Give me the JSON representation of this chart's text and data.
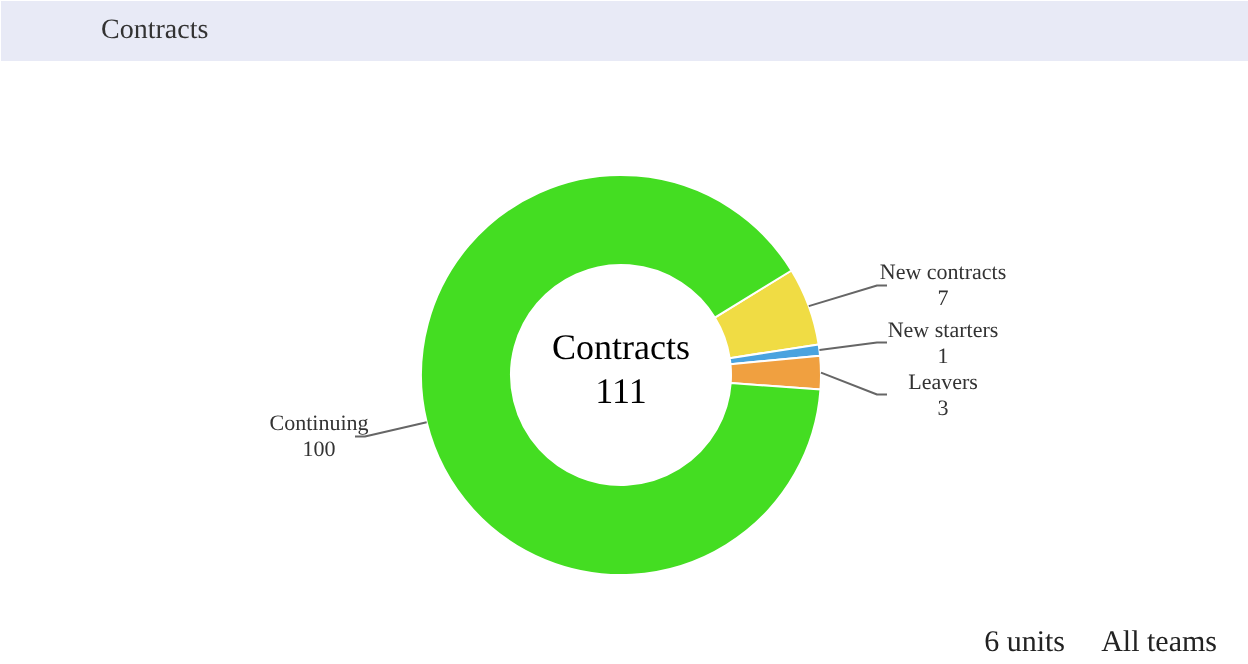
{
  "chart_data": {
    "type": "donut",
    "title": "Contracts",
    "subtitle": "Contracts",
    "categories": [
      "New contracts",
      "New starters",
      "Leavers",
      "Continuing"
    ],
    "values": [
      7,
      1,
      3,
      100
    ],
    "colors": [
      "#f0dc44",
      "#4aa3df",
      "#f0a040",
      "#44dd22"
    ],
    "data_labels": true,
    "annotations": [
      "111",
      "6 units",
      "All teams"
    ]
  }
}
